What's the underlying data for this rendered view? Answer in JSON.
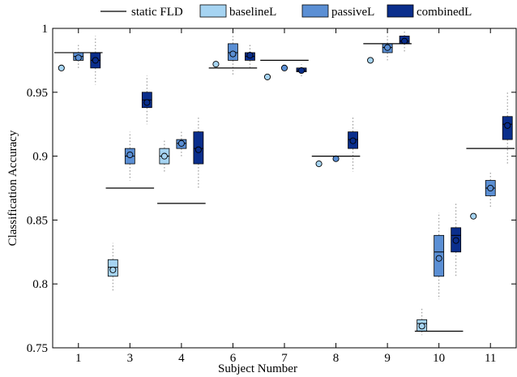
{
  "chart_data": {
    "type": "boxplot",
    "xlabel": "Subject Number",
    "ylabel": "Classification Accuracy",
    "ylim": [
      0.75,
      1.0
    ],
    "yticks": [
      0.75,
      0.8,
      0.85,
      0.9,
      0.95,
      1.0
    ],
    "ytick_labels": [
      "0.75",
      "0.8",
      "0.85",
      "0.9",
      "0.95",
      "1"
    ],
    "categories": [
      "1",
      "3",
      "4",
      "6",
      "7",
      "8",
      "9",
      "10",
      "11"
    ],
    "legend_position": "top",
    "grid": false,
    "static_fld": {
      "name": "static FLD",
      "color": "#000000",
      "values": [
        0.981,
        0.875,
        0.863,
        0.969,
        0.975,
        0.9,
        0.988,
        0.763,
        0.906
      ]
    },
    "series": [
      {
        "name": "baselineL",
        "color": "#a6d4f2",
        "boxes": [
          {
            "q1": 0.969,
            "q3": 0.969,
            "median": 0.969,
            "mean": 0.969,
            "wlo": 0.969,
            "whi": 0.969
          },
          {
            "q1": 0.806,
            "q3": 0.819,
            "median": 0.813,
            "mean": 0.811,
            "wlo": 0.794,
            "whi": 0.832
          },
          {
            "q1": 0.894,
            "q3": 0.906,
            "median": 0.9,
            "mean": 0.9,
            "wlo": 0.888,
            "whi": 0.913
          },
          {
            "q1": 0.972,
            "q3": 0.972,
            "median": 0.972,
            "mean": 0.972,
            "wlo": 0.972,
            "whi": 0.972
          },
          {
            "q1": 0.962,
            "q3": 0.962,
            "median": 0.962,
            "mean": 0.962,
            "wlo": 0.962,
            "whi": 0.962
          },
          {
            "q1": 0.894,
            "q3": 0.894,
            "median": 0.894,
            "mean": 0.894,
            "wlo": 0.894,
            "whi": 0.894
          },
          {
            "q1": 0.975,
            "q3": 0.975,
            "median": 0.975,
            "mean": 0.975,
            "wlo": 0.975,
            "whi": 0.975
          },
          {
            "q1": 0.763,
            "q3": 0.772,
            "median": 0.769,
            "mean": 0.767,
            "wlo": 0.76,
            "whi": 0.781
          },
          {
            "q1": 0.853,
            "q3": 0.853,
            "median": 0.853,
            "mean": 0.853,
            "wlo": 0.853,
            "whi": 0.853
          }
        ]
      },
      {
        "name": "passiveL",
        "color": "#5b8fd4",
        "boxes": [
          {
            "q1": 0.975,
            "q3": 0.981,
            "median": 0.978,
            "mean": 0.977,
            "wlo": 0.969,
            "whi": 0.988
          },
          {
            "q1": 0.894,
            "q3": 0.906,
            "median": 0.9,
            "mean": 0.901,
            "wlo": 0.881,
            "whi": 0.919
          },
          {
            "q1": 0.906,
            "q3": 0.913,
            "median": 0.91,
            "mean": 0.91,
            "wlo": 0.9,
            "whi": 0.919
          },
          {
            "q1": 0.975,
            "q3": 0.988,
            "median": 0.981,
            "mean": 0.98,
            "wlo": 0.963,
            "whi": 0.994
          },
          {
            "q1": 0.969,
            "q3": 0.969,
            "median": 0.969,
            "mean": 0.969,
            "wlo": 0.969,
            "whi": 0.969
          },
          {
            "q1": 0.898,
            "q3": 0.898,
            "median": 0.898,
            "mean": 0.898,
            "wlo": 0.898,
            "whi": 0.898
          },
          {
            "q1": 0.981,
            "q3": 0.988,
            "median": 0.985,
            "mean": 0.985,
            "wlo": 0.975,
            "whi": 0.994
          },
          {
            "q1": 0.806,
            "q3": 0.838,
            "median": 0.825,
            "mean": 0.82,
            "wlo": 0.788,
            "whi": 0.856
          },
          {
            "q1": 0.869,
            "q3": 0.881,
            "median": 0.875,
            "mean": 0.875,
            "wlo": 0.86,
            "whi": 0.888
          }
        ]
      },
      {
        "name": "combinedL",
        "color": "#0a2e8c",
        "boxes": [
          {
            "q1": 0.969,
            "q3": 0.981,
            "median": 0.975,
            "mean": 0.975,
            "wlo": 0.956,
            "whi": 0.994
          },
          {
            "q1": 0.938,
            "q3": 0.95,
            "median": 0.944,
            "mean": 0.942,
            "wlo": 0.925,
            "whi": 0.963
          },
          {
            "q1": 0.894,
            "q3": 0.919,
            "median": 0.906,
            "mean": 0.905,
            "wlo": 0.875,
            "whi": 0.931
          },
          {
            "q1": 0.975,
            "q3": 0.981,
            "median": 0.978,
            "mean": 0.979,
            "wlo": 0.969,
            "whi": 0.988
          },
          {
            "q1": 0.966,
            "q3": 0.969,
            "median": 0.967,
            "mean": 0.967,
            "wlo": 0.962,
            "whi": 0.972
          },
          {
            "q1": 0.906,
            "q3": 0.919,
            "median": 0.913,
            "mean": 0.912,
            "wlo": 0.888,
            "whi": 0.931
          },
          {
            "q1": 0.988,
            "q3": 0.994,
            "median": 0.99,
            "mean": 0.99,
            "wlo": 0.981,
            "whi": 0.998
          },
          {
            "q1": 0.825,
            "q3": 0.844,
            "median": 0.838,
            "mean": 0.834,
            "wlo": 0.806,
            "whi": 0.863
          },
          {
            "q1": 0.913,
            "q3": 0.931,
            "median": 0.925,
            "mean": 0.924,
            "wlo": 0.894,
            "whi": 0.95
          }
        ]
      }
    ]
  }
}
